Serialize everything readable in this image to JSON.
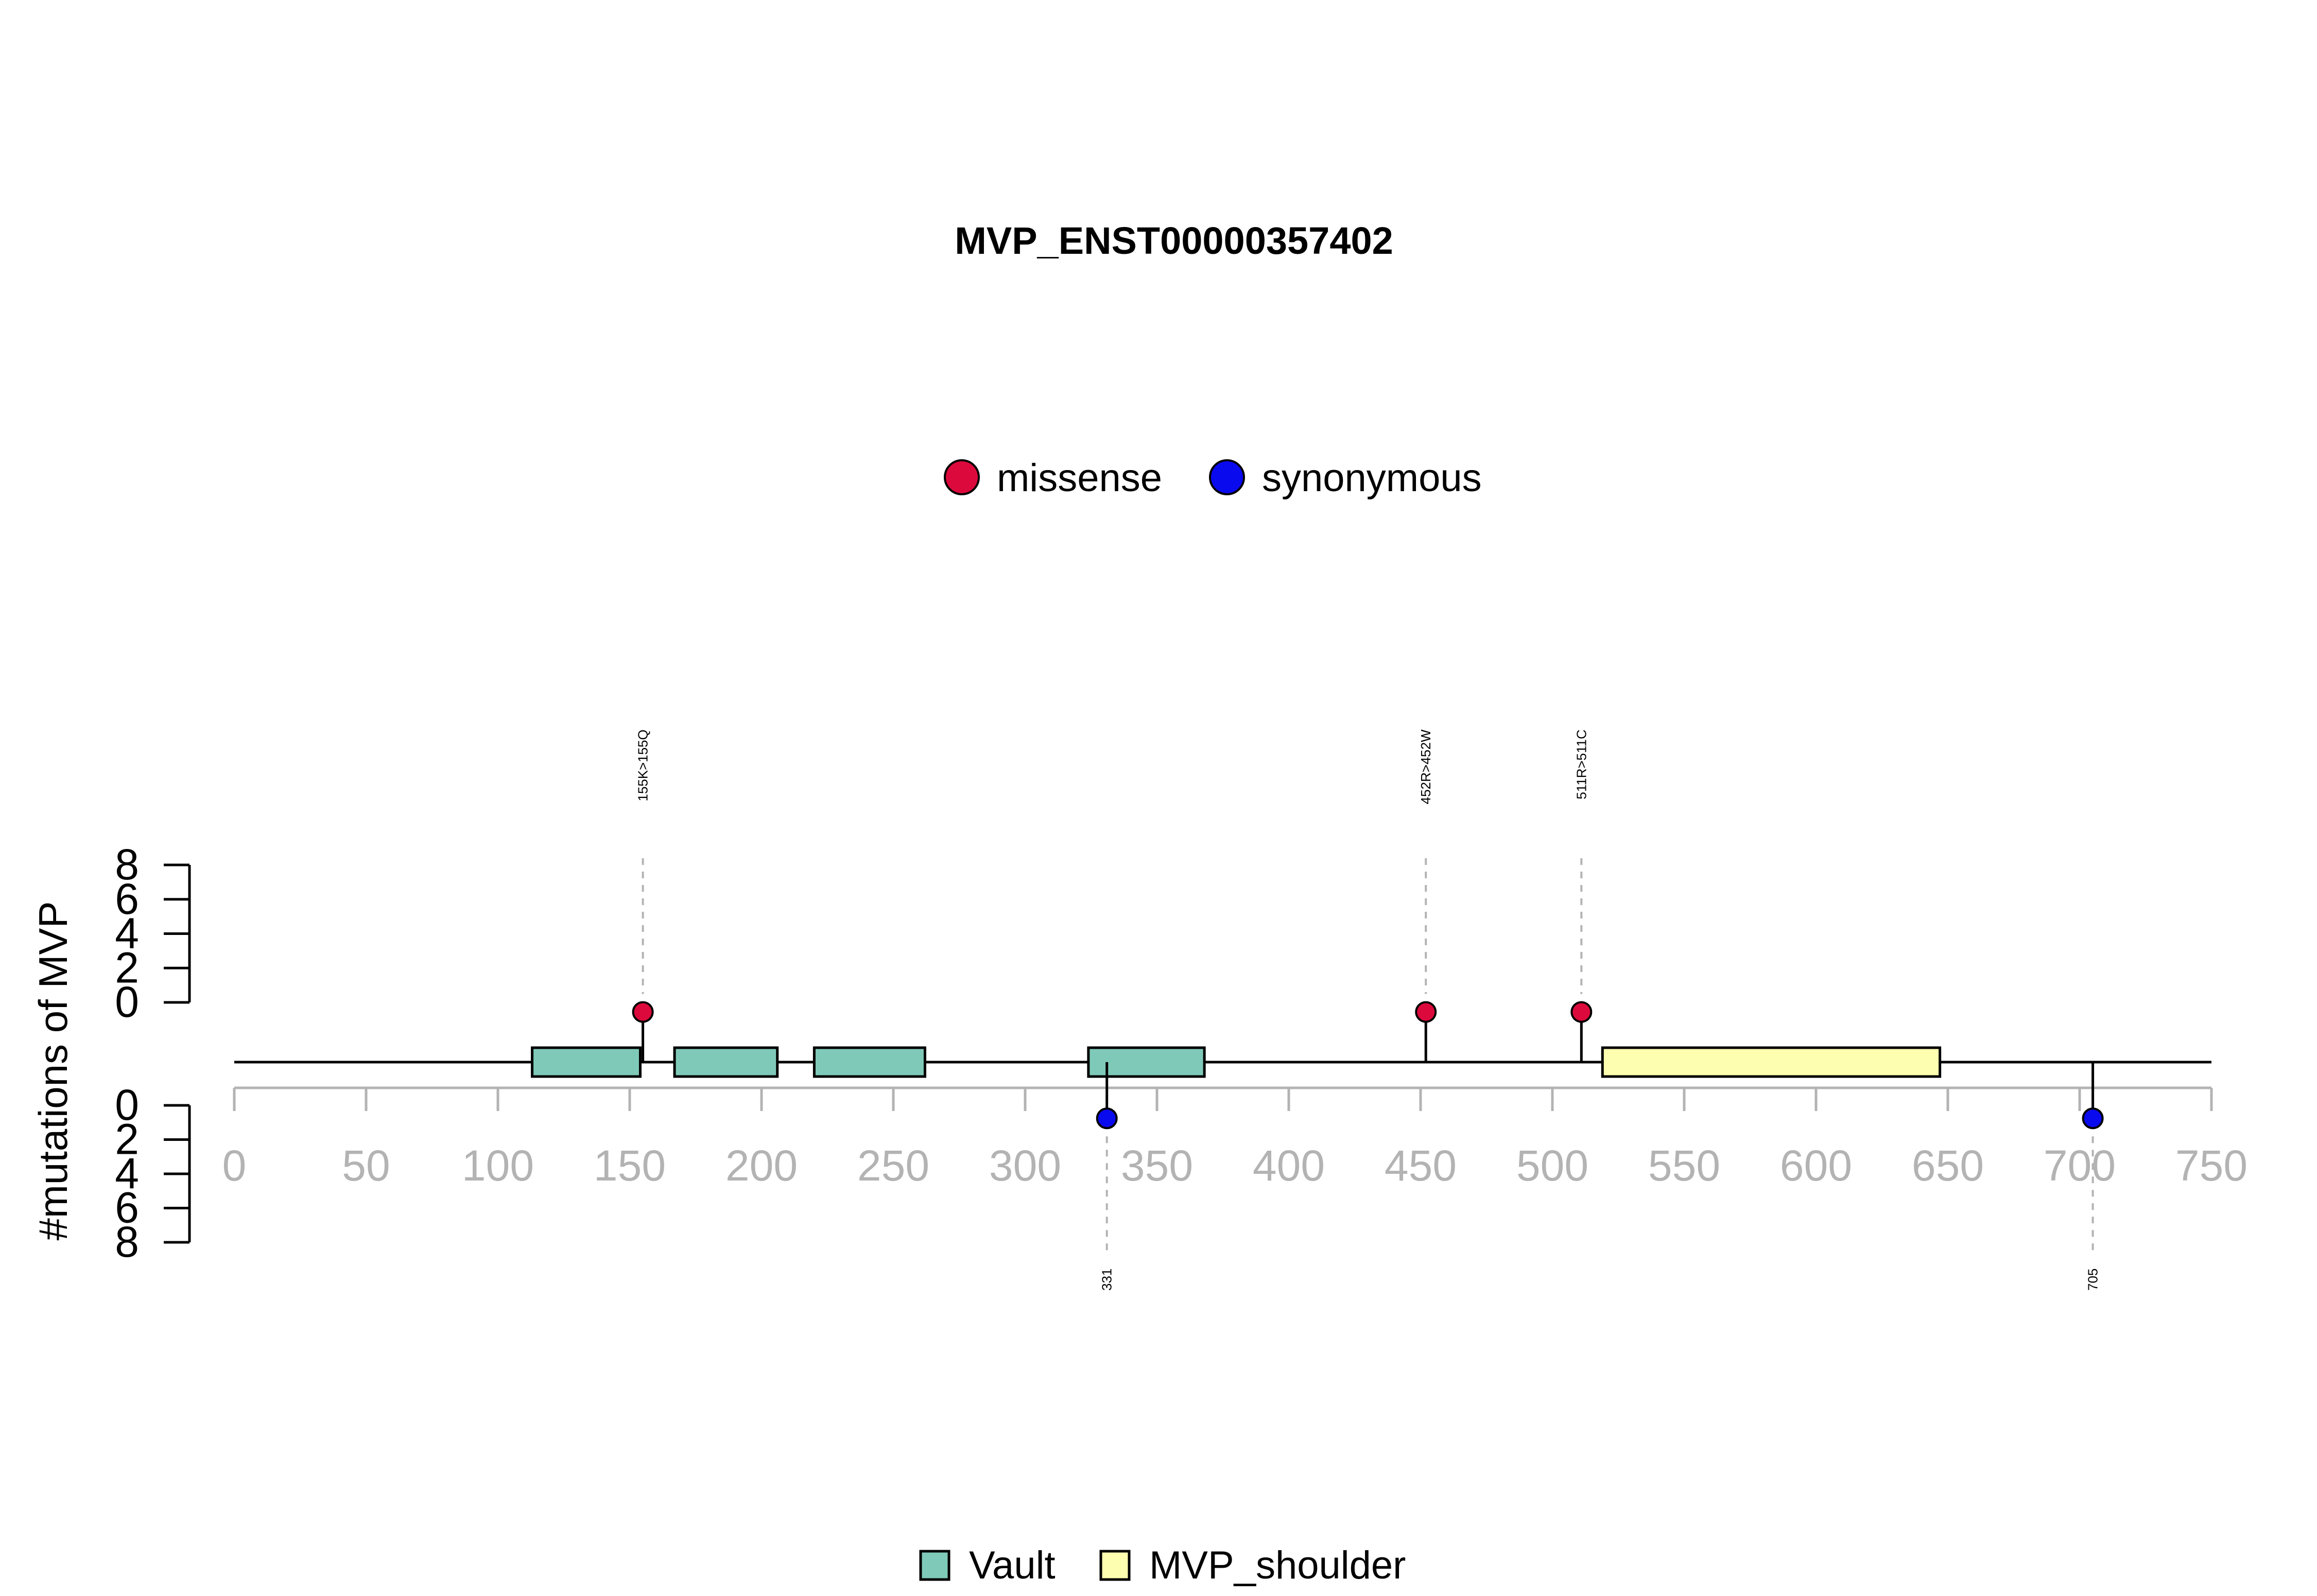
{
  "chart_data": {
    "type": "lollipop",
    "title": "MVP_ENST00000357402",
    "ylabel": "#mutations of MVP",
    "xlim": [
      0,
      750
    ],
    "x_ticks": [
      0,
      50,
      100,
      150,
      200,
      250,
      300,
      350,
      400,
      450,
      500,
      550,
      600,
      650,
      700,
      750
    ],
    "y_ticks_top": [
      "8",
      "6",
      "4",
      "2",
      "0"
    ],
    "y_ticks_bottom": [
      "0",
      "2",
      "4",
      "6",
      "8"
    ],
    "y_max": 8,
    "mutation_legend": [
      {
        "name": "missense",
        "color": "#dc0a3c"
      },
      {
        "name": "synonymous",
        "color": "#0a0aee"
      }
    ],
    "domain_legend": [
      {
        "name": "Vault",
        "color": "#7fc9b8"
      },
      {
        "name": "MVP_shoulder",
        "color": "#fefeb0"
      }
    ],
    "domains": [
      {
        "name": "Vault",
        "start": 113,
        "end": 154
      },
      {
        "name": "Vault",
        "start": 167,
        "end": 206
      },
      {
        "name": "Vault",
        "start": 220,
        "end": 262
      },
      {
        "name": "Vault",
        "start": 324,
        "end": 368
      },
      {
        "name": "MVP_shoulder",
        "start": 519,
        "end": 647
      }
    ],
    "mutations": [
      {
        "position": 155,
        "label": "155K>155Q",
        "type": "missense",
        "count": 1,
        "side": "top"
      },
      {
        "position": 452,
        "label": "452R>452W",
        "type": "missense",
        "count": 1,
        "side": "top"
      },
      {
        "position": 511,
        "label": "511R>511C",
        "type": "missense",
        "count": 1,
        "side": "top"
      },
      {
        "position": 331,
        "label": "331",
        "type": "synonymous",
        "count": 1,
        "side": "bottom"
      },
      {
        "position": 705,
        "label": "705",
        "type": "synonymous",
        "count": 1,
        "side": "bottom"
      }
    ]
  }
}
